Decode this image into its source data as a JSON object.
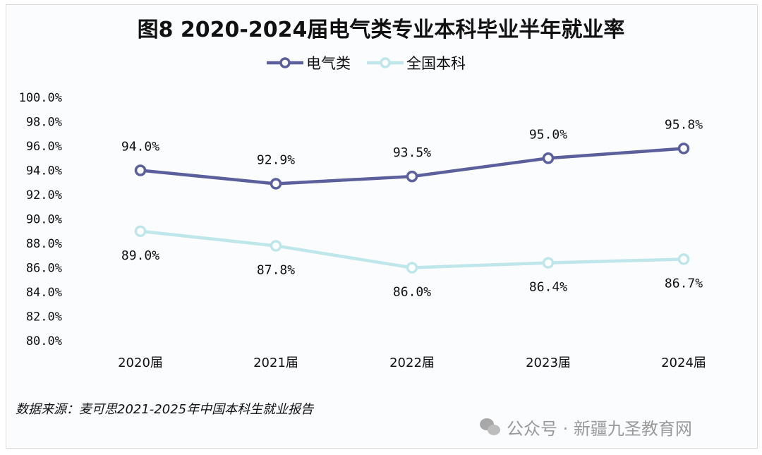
{
  "chart_data": {
    "type": "line",
    "title": "图8 2020-2024届电气类专业本科毕业半年就业率",
    "categories": [
      "2020届",
      "2021届",
      "2022届",
      "2023届",
      "2024届"
    ],
    "series": [
      {
        "name": "电气类",
        "values": [
          94.0,
          92.9,
          93.5,
          95.0,
          95.8
        ],
        "labels": [
          "94.0%",
          "92.9%",
          "93.5%",
          "95.0%",
          "95.8%"
        ],
        "color": "#5b5f9c",
        "label_position": "above"
      },
      {
        "name": "全国本科",
        "values": [
          89.0,
          87.8,
          86.0,
          86.4,
          86.7
        ],
        "labels": [
          "89.0%",
          "87.8%",
          "86.0%",
          "86.4%",
          "86.7%"
        ],
        "color": "#bfe6ea",
        "label_position": "below"
      }
    ],
    "ylim": [
      80,
      100
    ],
    "yticks": [
      "80.0%",
      "82.0%",
      "84.0%",
      "86.0%",
      "88.0%",
      "90.0%",
      "92.0%",
      "94.0%",
      "96.0%",
      "98.0%",
      "100.0%"
    ],
    "grid": false,
    "legend_position": "top"
  },
  "source": "数据来源：麦可思2021-2025年中国本科生就业报告",
  "watermark": "公众号 · 新疆九圣教育网"
}
